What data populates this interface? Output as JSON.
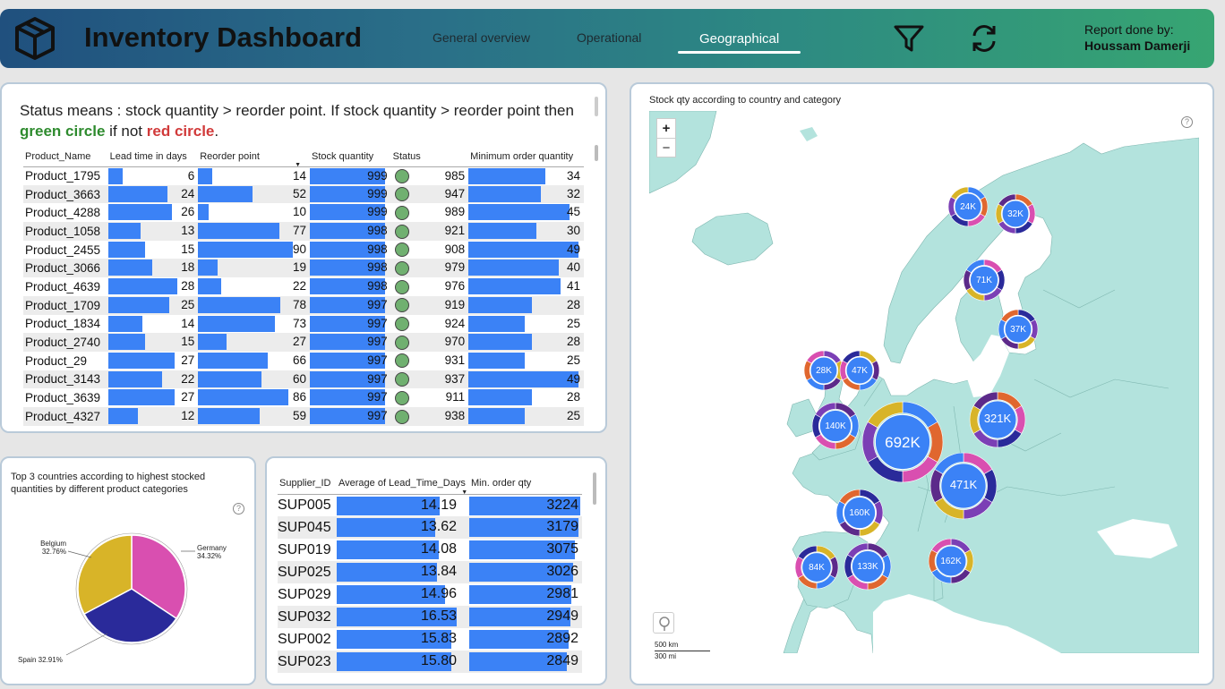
{
  "header": {
    "title": "Inventory Dashboard",
    "tabs": [
      {
        "label": "General overview",
        "active": false
      },
      {
        "label": "Operational",
        "active": false
      },
      {
        "label": "Geographical",
        "active": true
      }
    ],
    "report_label": "Report done by:",
    "report_author": "Houssam Damerji",
    "icons": [
      "box-icon",
      "filter-icon",
      "refresh-icon"
    ]
  },
  "status_note": {
    "text1": "Status means : stock quantity > reorder point. If stock quantity > reorder point then ",
    "green": "green circle",
    "text2": " if not ",
    "red": "red circle",
    "text3": "."
  },
  "inventory_table": {
    "columns": [
      "Product_Name",
      "Lead time in days",
      "Reorder point",
      "Stock quantity",
      "Status",
      "Minimum order quantity"
    ],
    "rows": [
      {
        "name": "Product_1795",
        "lead": 6,
        "reorder": 14,
        "stock": 999,
        "status_val": 985,
        "min": 34
      },
      {
        "name": "Product_3663",
        "lead": 24,
        "reorder": 52,
        "stock": 999,
        "status_val": 947,
        "min": 32
      },
      {
        "name": "Product_4288",
        "lead": 26,
        "reorder": 10,
        "stock": 999,
        "status_val": 989,
        "min": 45
      },
      {
        "name": "Product_1058",
        "lead": 13,
        "reorder": 77,
        "stock": 998,
        "status_val": 921,
        "min": 30
      },
      {
        "name": "Product_2455",
        "lead": 15,
        "reorder": 90,
        "stock": 998,
        "status_val": 908,
        "min": 49
      },
      {
        "name": "Product_3066",
        "lead": 18,
        "reorder": 19,
        "stock": 998,
        "status_val": 979,
        "min": 40
      },
      {
        "name": "Product_4639",
        "lead": 28,
        "reorder": 22,
        "stock": 998,
        "status_val": 976,
        "min": 41
      },
      {
        "name": "Product_1709",
        "lead": 25,
        "reorder": 78,
        "stock": 997,
        "status_val": 919,
        "min": 28
      },
      {
        "name": "Product_1834",
        "lead": 14,
        "reorder": 73,
        "stock": 997,
        "status_val": 924,
        "min": 25
      },
      {
        "name": "Product_2740",
        "lead": 15,
        "reorder": 27,
        "stock": 997,
        "status_val": 970,
        "min": 28
      },
      {
        "name": "Product_29",
        "lead": 27,
        "reorder": 66,
        "stock": 997,
        "status_val": 931,
        "min": 25
      },
      {
        "name": "Product_3143",
        "lead": 22,
        "reorder": 60,
        "stock": 997,
        "status_val": 937,
        "min": 49
      },
      {
        "name": "Product_3639",
        "lead": 27,
        "reorder": 86,
        "stock": 997,
        "status_val": 911,
        "min": 28
      },
      {
        "name": "Product_4327",
        "lead": 12,
        "reorder": 59,
        "stock": 997,
        "status_val": 938,
        "min": 25
      }
    ],
    "status_color": "#70b070",
    "bar_color": "#3b82f6"
  },
  "pie_chart": {
    "title": "Top 3 countries according to highest stocked quantities by different product categories",
    "help": "?",
    "chart_data": {
      "type": "pie",
      "categories": [
        "Germany",
        "Spain",
        "Belgium"
      ],
      "values": [
        34.32,
        32.91,
        32.76
      ],
      "value_labels": [
        "34.32%",
        "32.91%",
        "32.76%"
      ],
      "colors": [
        "#d94fb0",
        "#2a2a9a",
        "#d8b428"
      ]
    }
  },
  "supplier_table": {
    "columns": [
      "Supplier_ID",
      "Average of Lead_Time_Days",
      "Min. order qty"
    ],
    "rows": [
      {
        "id": "SUP005",
        "avg": "14.19",
        "min": 3224
      },
      {
        "id": "SUP045",
        "avg": "13.62",
        "min": 3179
      },
      {
        "id": "SUP019",
        "avg": "14.08",
        "min": 3075
      },
      {
        "id": "SUP025",
        "avg": "13.84",
        "min": 3026
      },
      {
        "id": "SUP029",
        "avg": "14.96",
        "min": 2981
      },
      {
        "id": "SUP032",
        "avg": "16.53",
        "min": 2949
      },
      {
        "id": "SUP002",
        "avg": "15.83",
        "min": 2892
      },
      {
        "id": "SUP023",
        "avg": "15.80",
        "min": 2849
      }
    ]
  },
  "map": {
    "title": "Stock qty according to country and category",
    "zoom_in": "+",
    "zoom_out": "−",
    "help": "?",
    "scale_km": "500 km",
    "scale_mi": "300 mi",
    "land_color": "#b3e3dd",
    "bubbles": [
      {
        "label": "24K"
      },
      {
        "label": "32K"
      },
      {
        "label": "71K"
      },
      {
        "label": "37K"
      },
      {
        "label": "28K"
      },
      {
        "label": "47K"
      },
      {
        "label": "140K"
      },
      {
        "label": "692K"
      },
      {
        "label": "321K"
      },
      {
        "label": "471K"
      },
      {
        "label": "160K"
      },
      {
        "label": "162K"
      },
      {
        "label": "84K"
      },
      {
        "label": "133K"
      }
    ]
  }
}
